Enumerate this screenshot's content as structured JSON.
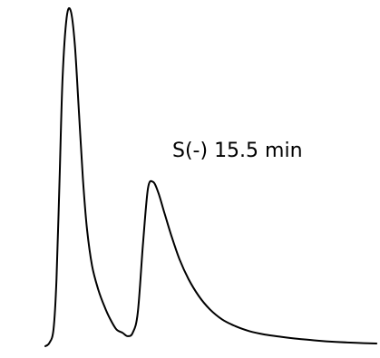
{
  "chart_data": {
    "type": "line",
    "series": [
      {
        "values": [
          0.0,
          0.01,
          0.05,
          0.2,
          0.5,
          0.8,
          0.98,
          1.0,
          0.9,
          0.7,
          0.5,
          0.35,
          0.24,
          0.17,
          0.12,
          0.08,
          0.05,
          0.04,
          0.03,
          0.04,
          0.1,
          0.3,
          0.47,
          0.49,
          0.46,
          0.4,
          0.33,
          0.26,
          0.2,
          0.15,
          0.11,
          0.08,
          0.06,
          0.045,
          0.035,
          0.028,
          0.022,
          0.017,
          0.013,
          0.01,
          0.008
        ]
      }
    ],
    "x": [
      0,
      4,
      8,
      11,
      14,
      17,
      21,
      25,
      29,
      33,
      37,
      41,
      46,
      52,
      58,
      64,
      70,
      76,
      81,
      86,
      91,
      96,
      101,
      106,
      111,
      117,
      124,
      132,
      141,
      151,
      162,
      174,
      187,
      201,
      216,
      232,
      249,
      267,
      286,
      306,
      326
    ],
    "annotations": [
      {
        "text": "S(-) 15.5 min"
      }
    ],
    "xlabel": "",
    "ylabel": "",
    "grid": false,
    "axes_visible": false,
    "line_color": "#000000"
  }
}
